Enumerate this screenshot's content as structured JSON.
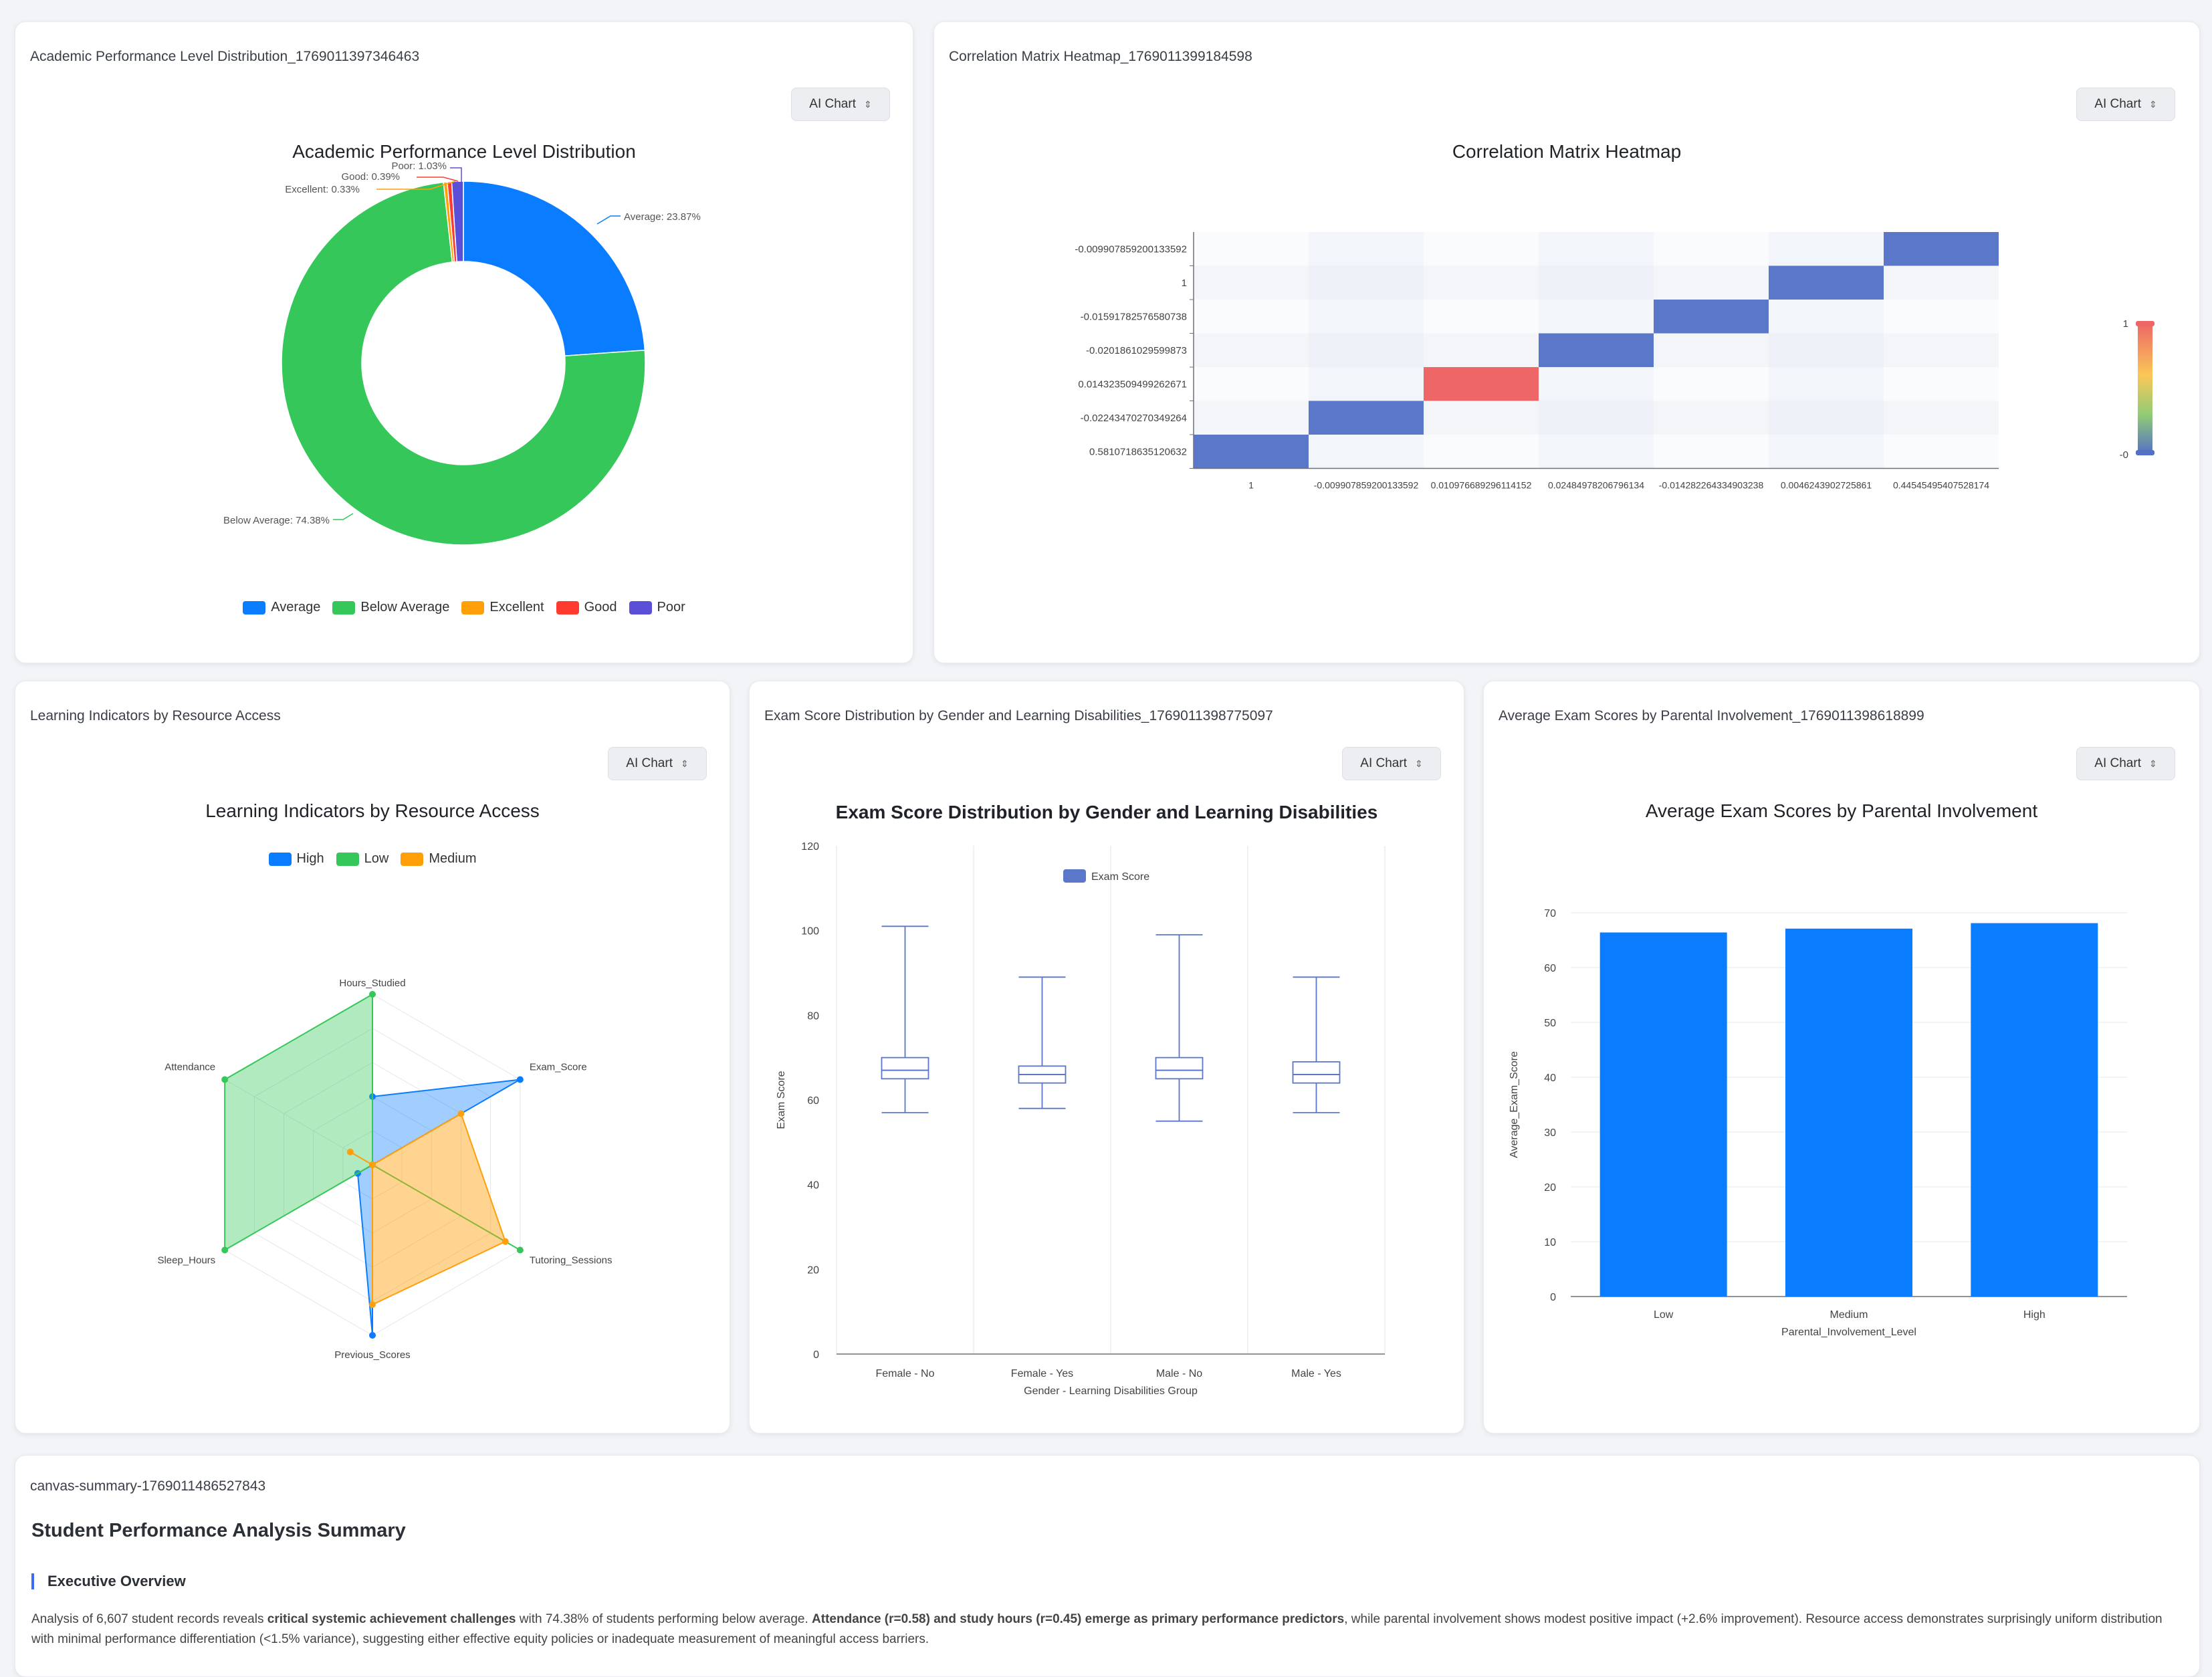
{
  "colors": {
    "blue": "#0a7cff",
    "green": "#35c759",
    "orange": "#ff9f0a",
    "red": "#ff3b30",
    "purple": "#5b4fd8",
    "heat_blue": "#5b77c9",
    "heat_red": "#ee6666"
  },
  "ai_chart_label": "AI Chart",
  "cards": {
    "pie": {
      "card_title": "Academic Performance Level Distribution_1769011397346463",
      "chart_data": {
        "type": "pie",
        "title": "Academic Performance Level Distribution",
        "slices": [
          {
            "name": "Average",
            "value": 23.87,
            "label": "Average: 23.87%",
            "color": "#0a7cff"
          },
          {
            "name": "Below Average",
            "value": 74.38,
            "label": "Below Average: 74.38%",
            "color": "#35c759"
          },
          {
            "name": "Excellent",
            "value": 0.33,
            "label": "Excellent: 0.33%",
            "color": "#ff9f0a"
          },
          {
            "name": "Good",
            "value": 0.39,
            "label": "Good: 0.39%",
            "color": "#ff3b30"
          },
          {
            "name": "Poor",
            "value": 1.03,
            "label": "Poor: 1.03%",
            "color": "#5b4fd8"
          }
        ]
      }
    },
    "heatmap": {
      "card_title": "Correlation Matrix Heatmap_1769011399184598",
      "chart_data": {
        "type": "heatmap",
        "title": "Correlation Matrix Heatmap",
        "x_labels": [
          "1",
          "-0.009907859200133592",
          "0.010976689296114152",
          "0.02484978206796134",
          "-0.014282264334903238",
          "0.0046243902725861",
          "0.44545495407528174"
        ],
        "y_labels": [
          "0.5810718635120632",
          "-0.02243470270349264",
          "0.014323509499262671",
          "-0.0201861029599873",
          "-0.01591782576580738",
          "1",
          "-0.009907859200133592"
        ],
        "cells": [
          {
            "x": 0,
            "y": 0,
            "v": -0.009907859200133592
          },
          {
            "x": 1,
            "y": 1,
            "v": -0.009907859200133592
          },
          {
            "x": 2,
            "y": 2,
            "v": 1
          },
          {
            "x": 3,
            "y": 3,
            "v": -0.01591782576580738
          },
          {
            "x": 4,
            "y": 4,
            "v": -0.0201861029599873
          },
          {
            "x": 5,
            "y": 5,
            "v": 0.014323509499262671
          },
          {
            "x": 6,
            "y": 6,
            "v": -0.02243470270349264
          }
        ],
        "visual_map": {
          "min_label": "-0",
          "max_label": "1"
        }
      }
    },
    "radar": {
      "card_title": "Learning Indicators by Resource Access",
      "chart_data": {
        "type": "radar",
        "title": "Learning Indicators by Resource Access",
        "indicators": [
          "Hours_Studied",
          "Exam_Score",
          "Tutoring_Sessions",
          "Previous_Scores",
          "Sleep_Hours",
          "Attendance"
        ],
        "series": [
          {
            "name": "High",
            "color": "#0a7cff",
            "values": [
              0.4,
              1.0,
              0.0,
              1.0,
              0.1,
              0.0
            ]
          },
          {
            "name": "Low",
            "color": "#35c759",
            "values": [
              1.0,
              0.0,
              1.0,
              0.0,
              1.0,
              1.0
            ]
          },
          {
            "name": "Medium",
            "color": "#ff9f0a",
            "values": [
              0.0,
              0.6,
              0.9,
              0.82,
              0.0,
              0.15
            ]
          }
        ]
      }
    },
    "box": {
      "card_title": "Exam Score Distribution by Gender and Learning Disabilities_1769011398775097",
      "chart_data": {
        "type": "boxplot",
        "title": "Exam Score Distribution by Gender and Learning Disabilities",
        "legend": "Exam Score",
        "xlabel": "Gender - Learning Disabilities Group",
        "ylabel": "Exam Score",
        "ylim": [
          0,
          120
        ],
        "yticks": [
          "0",
          "20",
          "40",
          "60",
          "80",
          "100",
          "120"
        ],
        "categories": [
          "Female - No",
          "Female - Yes",
          "Male - No",
          "Male - Yes"
        ],
        "boxes": [
          {
            "min": 57,
            "q1": 65,
            "median": 67,
            "q3": 70,
            "max": 101
          },
          {
            "min": 58,
            "q1": 64,
            "median": 66,
            "q3": 68,
            "max": 89
          },
          {
            "min": 55,
            "q1": 65,
            "median": 67,
            "q3": 70,
            "max": 99
          },
          {
            "min": 57,
            "q1": 64,
            "median": 66,
            "q3": 69,
            "max": 89
          }
        ]
      }
    },
    "bar": {
      "card_title": "Average Exam Scores by Parental Involvement_1769011398618899",
      "chart_data": {
        "type": "bar",
        "title": "Average Exam Scores by Parental Involvement",
        "xlabel": "Parental_Involvement_Level",
        "ylabel": "Average_Exam_Score",
        "ylim": [
          0,
          70
        ],
        "yticks": [
          "0",
          "10",
          "20",
          "30",
          "40",
          "50",
          "60",
          "70"
        ],
        "categories": [
          "Low",
          "Medium",
          "High"
        ],
        "values": [
          66.4,
          67.1,
          68.1
        ]
      }
    },
    "summary": {
      "card_title": "canvas-summary-1769011486527843",
      "heading": "Student Performance Analysis Summary",
      "subheading": "Executive Overview",
      "p1": "Analysis of 6,607 student records reveals ",
      "b1": "critical systemic achievement challenges",
      "p2": " with 74.38% of students performing below average. ",
      "b2": "Attendance (r=0.58) and study hours (r=0.45) emerge as primary performance predictors",
      "p3": ", while parental involvement shows modest positive impact (+2.6% improvement). Resource access demonstrates surprisingly uniform distribution with minimal performance differentiation (<1.5% variance), suggesting either effective equity policies or inadequate measurement of meaningful access barriers."
    }
  }
}
